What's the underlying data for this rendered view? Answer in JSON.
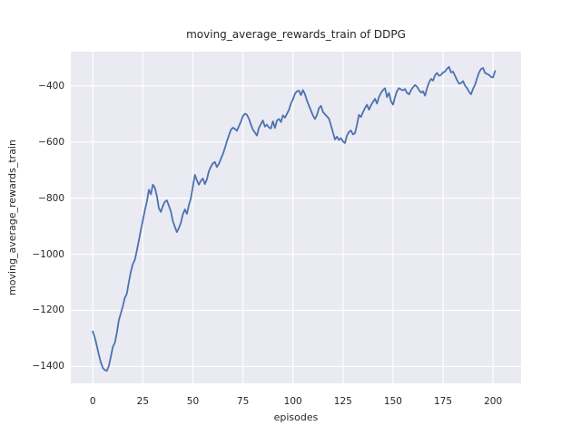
{
  "chart_data": {
    "type": "line",
    "title": "moving_average_rewards_train of DDPG",
    "xlabel": "episodes",
    "ylabel": "moving_average_rewards_train",
    "x_ticks": [
      0,
      25,
      50,
      75,
      100,
      125,
      150,
      175,
      200
    ],
    "x_tick_labels": [
      "0",
      "25",
      "50",
      "75",
      "100",
      "125",
      "150",
      "175",
      "200"
    ],
    "y_ticks": [
      -400,
      -600,
      -800,
      -1000,
      -1200,
      -1400
    ],
    "y_tick_labels": [
      "−400",
      "−600",
      "−800",
      "−1000",
      "−1200",
      "−1400"
    ],
    "xlim": [
      -11,
      214
    ],
    "ylim": [
      -1460,
      -278
    ],
    "grid": true,
    "legend": "none",
    "colors": {
      "line": "#4c72b0",
      "plot_background": "#eaeaf2",
      "grid": "#ffffff",
      "text": "#262626",
      "figure_background": "#ffffff"
    },
    "series": [
      {
        "name": "moving_average_rewards_train",
        "points": [
          [
            0,
            -1275
          ],
          [
            1,
            -1297
          ],
          [
            2,
            -1327
          ],
          [
            3,
            -1358
          ],
          [
            4,
            -1386
          ],
          [
            5,
            -1405
          ],
          [
            6,
            -1413
          ],
          [
            7,
            -1415
          ],
          [
            8,
            -1398
          ],
          [
            9,
            -1365
          ],
          [
            10,
            -1330
          ],
          [
            11,
            -1316
          ],
          [
            12,
            -1280
          ],
          [
            13,
            -1235
          ],
          [
            14,
            -1211
          ],
          [
            15,
            -1185
          ],
          [
            16,
            -1155
          ],
          [
            17,
            -1141
          ],
          [
            18,
            -1100
          ],
          [
            19,
            -1063
          ],
          [
            20,
            -1035
          ],
          [
            21,
            -1020
          ],
          [
            22,
            -988
          ],
          [
            23,
            -950
          ],
          [
            24,
            -913
          ],
          [
            25,
            -878
          ],
          [
            26,
            -843
          ],
          [
            27,
            -812
          ],
          [
            28,
            -770
          ],
          [
            29,
            -786
          ],
          [
            30,
            -752
          ],
          [
            31,
            -763
          ],
          [
            32,
            -792
          ],
          [
            33,
            -836
          ],
          [
            34,
            -849
          ],
          [
            35,
            -828
          ],
          [
            36,
            -813
          ],
          [
            37,
            -808
          ],
          [
            38,
            -827
          ],
          [
            39,
            -847
          ],
          [
            40,
            -882
          ],
          [
            41,
            -902
          ],
          [
            42,
            -921
          ],
          [
            43,
            -907
          ],
          [
            44,
            -888
          ],
          [
            45,
            -858
          ],
          [
            46,
            -840
          ],
          [
            47,
            -856
          ],
          [
            48,
            -824
          ],
          [
            49,
            -800
          ],
          [
            50,
            -758
          ],
          [
            51,
            -717
          ],
          [
            52,
            -737
          ],
          [
            53,
            -752
          ],
          [
            54,
            -738
          ],
          [
            55,
            -730
          ],
          [
            56,
            -750
          ],
          [
            57,
            -733
          ],
          [
            58,
            -704
          ],
          [
            59,
            -688
          ],
          [
            60,
            -676
          ],
          [
            61,
            -671
          ],
          [
            62,
            -689
          ],
          [
            63,
            -678
          ],
          [
            64,
            -660
          ],
          [
            65,
            -643
          ],
          [
            66,
            -622
          ],
          [
            67,
            -598
          ],
          [
            68,
            -576
          ],
          [
            69,
            -556
          ],
          [
            70,
            -549
          ],
          [
            71,
            -553
          ],
          [
            72,
            -560
          ],
          [
            73,
            -543
          ],
          [
            74,
            -527
          ],
          [
            75,
            -508
          ],
          [
            76,
            -499
          ],
          [
            77,
            -503
          ],
          [
            78,
            -517
          ],
          [
            79,
            -538
          ],
          [
            80,
            -556
          ],
          [
            81,
            -566
          ],
          [
            82,
            -577
          ],
          [
            83,
            -550
          ],
          [
            84,
            -536
          ],
          [
            85,
            -523
          ],
          [
            86,
            -545
          ],
          [
            87,
            -538
          ],
          [
            88,
            -548
          ],
          [
            89,
            -552
          ],
          [
            90,
            -526
          ],
          [
            91,
            -550
          ],
          [
            92,
            -523
          ],
          [
            93,
            -518
          ],
          [
            94,
            -529
          ],
          [
            95,
            -505
          ],
          [
            96,
            -513
          ],
          [
            97,
            -500
          ],
          [
            98,
            -485
          ],
          [
            99,
            -462
          ],
          [
            100,
            -448
          ],
          [
            101,
            -428
          ],
          [
            102,
            -419
          ],
          [
            103,
            -417
          ],
          [
            104,
            -433
          ],
          [
            105,
            -415
          ],
          [
            106,
            -429
          ],
          [
            107,
            -452
          ],
          [
            108,
            -470
          ],
          [
            109,
            -488
          ],
          [
            110,
            -505
          ],
          [
            111,
            -518
          ],
          [
            112,
            -504
          ],
          [
            113,
            -479
          ],
          [
            114,
            -471
          ],
          [
            115,
            -493
          ],
          [
            116,
            -501
          ],
          [
            117,
            -509
          ],
          [
            118,
            -517
          ],
          [
            119,
            -541
          ],
          [
            120,
            -566
          ],
          [
            121,
            -591
          ],
          [
            122,
            -581
          ],
          [
            123,
            -593
          ],
          [
            124,
            -586
          ],
          [
            125,
            -598
          ],
          [
            126,
            -604
          ],
          [
            127,
            -577
          ],
          [
            128,
            -564
          ],
          [
            129,
            -559
          ],
          [
            130,
            -573
          ],
          [
            131,
            -569
          ],
          [
            132,
            -539
          ],
          [
            133,
            -503
          ],
          [
            134,
            -511
          ],
          [
            135,
            -494
          ],
          [
            136,
            -479
          ],
          [
            137,
            -467
          ],
          [
            138,
            -485
          ],
          [
            139,
            -469
          ],
          [
            140,
            -457
          ],
          [
            141,
            -446
          ],
          [
            142,
            -463
          ],
          [
            143,
            -439
          ],
          [
            144,
            -425
          ],
          [
            145,
            -415
          ],
          [
            146,
            -408
          ],
          [
            147,
            -440
          ],
          [
            148,
            -425
          ],
          [
            149,
            -455
          ],
          [
            150,
            -467
          ],
          [
            151,
            -440
          ],
          [
            152,
            -419
          ],
          [
            153,
            -408
          ],
          [
            154,
            -413
          ],
          [
            155,
            -416
          ],
          [
            156,
            -411
          ],
          [
            157,
            -425
          ],
          [
            158,
            -430
          ],
          [
            159,
            -415
          ],
          [
            160,
            -405
          ],
          [
            161,
            -397
          ],
          [
            162,
            -403
          ],
          [
            163,
            -415
          ],
          [
            164,
            -424
          ],
          [
            165,
            -419
          ],
          [
            166,
            -435
          ],
          [
            167,
            -408
          ],
          [
            168,
            -388
          ],
          [
            169,
            -375
          ],
          [
            170,
            -381
          ],
          [
            171,
            -362
          ],
          [
            172,
            -354
          ],
          [
            173,
            -364
          ],
          [
            174,
            -361
          ],
          [
            175,
            -352
          ],
          [
            176,
            -349
          ],
          [
            177,
            -339
          ],
          [
            178,
            -332
          ],
          [
            179,
            -352
          ],
          [
            180,
            -349
          ],
          [
            181,
            -364
          ],
          [
            182,
            -380
          ],
          [
            183,
            -392
          ],
          [
            184,
            -390
          ],
          [
            185,
            -383
          ],
          [
            186,
            -399
          ],
          [
            187,
            -408
          ],
          [
            188,
            -421
          ],
          [
            189,
            -430
          ],
          [
            190,
            -410
          ],
          [
            191,
            -396
          ],
          [
            192,
            -373
          ],
          [
            193,
            -352
          ],
          [
            194,
            -340
          ],
          [
            195,
            -336
          ],
          [
            196,
            -354
          ],
          [
            197,
            -357
          ],
          [
            198,
            -361
          ],
          [
            199,
            -368
          ],
          [
            200,
            -370
          ],
          [
            201,
            -347
          ]
        ]
      }
    ]
  }
}
